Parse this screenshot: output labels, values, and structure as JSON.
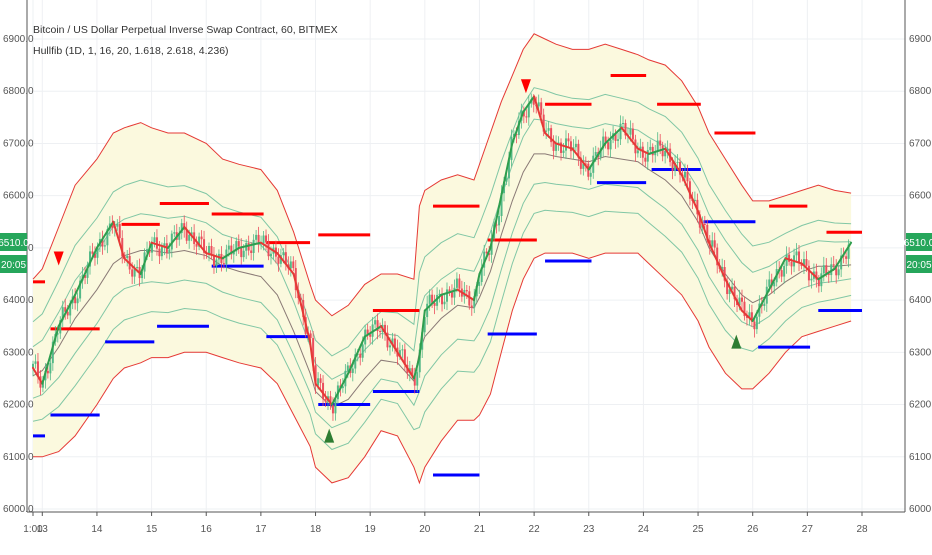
{
  "chart_data": {
    "type": "line",
    "title": "Bitcoin / US Dollar Perpetual Inverse Swap Contract, 60, BITMEX",
    "subtitle": "Hullfib (1D, 1, 16, 20, 1.618, 2.618, 4.236)",
    "ylim": [
      6000,
      6930
    ],
    "y_ticks": [
      "6000.0",
      "6100.0",
      "6200.0",
      "6300.0",
      "6400.0",
      "6500.0",
      "6600.0",
      "6700.0",
      "6800.0",
      "6900.0"
    ],
    "y_tick_values": [
      6000,
      6100,
      6200,
      6300,
      6400,
      6500,
      6600,
      6700,
      6800,
      6900
    ],
    "xlim": [
      12.8,
      28.1
    ],
    "x_ticks": [
      "1:00",
      "13",
      "14",
      "15",
      "16",
      "17",
      "18",
      "19",
      "20",
      "21",
      "22",
      "23",
      "24",
      "25",
      "26",
      "27",
      "28"
    ],
    "x_tick_values": [
      12.83,
      13,
      14,
      15,
      16,
      17,
      18,
      19,
      20,
      21,
      22,
      23,
      24,
      25,
      26,
      27,
      28
    ],
    "price_badge": "6510.0",
    "time_badge": "20:05",
    "x": [
      12.83,
      13.0,
      13.3,
      13.6,
      14.0,
      14.3,
      14.5,
      14.8,
      15.0,
      15.3,
      15.6,
      16.0,
      16.3,
      16.6,
      17.0,
      17.3,
      17.6,
      17.9,
      18.0,
      18.3,
      18.6,
      18.9,
      19.2,
      19.5,
      19.8,
      19.9,
      20.0,
      20.3,
      20.6,
      20.9,
      21.0,
      21.2,
      21.4,
      21.6,
      21.8,
      22.0,
      22.2,
      22.4,
      22.7,
      23.0,
      23.3,
      23.6,
      23.9,
      24.1,
      24.4,
      24.7,
      25.0,
      25.2,
      25.5,
      25.8,
      26.0,
      26.3,
      26.6,
      26.9,
      27.2,
      27.5,
      27.8
    ],
    "close": [
      6270,
      6240,
      6350,
      6410,
      6500,
      6550,
      6480,
      6450,
      6510,
      6500,
      6540,
      6490,
      6480,
      6500,
      6510,
      6490,
      6450,
      6320,
      6240,
      6200,
      6260,
      6330,
      6350,
      6300,
      6250,
      6290,
      6380,
      6410,
      6420,
      6400,
      6450,
      6500,
      6600,
      6700,
      6760,
      6790,
      6720,
      6700,
      6690,
      6650,
      6700,
      6730,
      6690,
      6680,
      6690,
      6640,
      6570,
      6510,
      6440,
      6380,
      6360,
      6420,
      6480,
      6470,
      6440,
      6460,
      6510
    ],
    "upper_band": [
      6440,
      6460,
      6540,
      6620,
      6670,
      6720,
      6730,
      6740,
      6730,
      6720,
      6720,
      6700,
      6670,
      6660,
      6650,
      6610,
      6530,
      6430,
      6400,
      6370,
      6390,
      6430,
      6450,
      6450,
      6440,
      6580,
      6610,
      6630,
      6640,
      6630,
      6660,
      6720,
      6780,
      6830,
      6880,
      6910,
      6900,
      6890,
      6880,
      6880,
      6890,
      6880,
      6870,
      6860,
      6850,
      6820,
      6770,
      6720,
      6670,
      6620,
      6590,
      6590,
      6600,
      6610,
      6620,
      6610,
      6605
    ],
    "lower_band": [
      6100,
      6100,
      6110,
      6140,
      6200,
      6250,
      6270,
      6280,
      6290,
      6290,
      6300,
      6300,
      6290,
      6280,
      6270,
      6240,
      6180,
      6120,
      6080,
      6050,
      6060,
      6100,
      6150,
      6140,
      6080,
      6050,
      6080,
      6130,
      6170,
      6170,
      6180,
      6220,
      6300,
      6380,
      6440,
      6480,
      6490,
      6490,
      6490,
      6480,
      6490,
      6490,
      6490,
      6470,
      6440,
      6410,
      6360,
      6310,
      6260,
      6230,
      6230,
      6260,
      6300,
      6330,
      6340,
      6350,
      6360
    ],
    "fib_levels": {
      "resistance": [
        {
          "x0": 12.83,
          "x1": 13.05,
          "y": 6435
        },
        {
          "x0": 13.15,
          "x1": 14.05,
          "y": 6345
        },
        {
          "x0": 14.45,
          "x1": 15.15,
          "y": 6545
        },
        {
          "x0": 15.15,
          "x1": 16.05,
          "y": 6585
        },
        {
          "x0": 16.1,
          "x1": 17.05,
          "y": 6565
        },
        {
          "x0": 17.1,
          "x1": 17.9,
          "y": 6510
        },
        {
          "x0": 18.05,
          "x1": 19.0,
          "y": 6525
        },
        {
          "x0": 19.05,
          "x1": 19.9,
          "y": 6380
        },
        {
          "x0": 20.15,
          "x1": 21.0,
          "y": 6580
        },
        {
          "x0": 21.15,
          "x1": 22.05,
          "y": 6515
        },
        {
          "x0": 22.2,
          "x1": 23.05,
          "y": 6775
        },
        {
          "x0": 23.4,
          "x1": 24.05,
          "y": 6830
        },
        {
          "x0": 24.25,
          "x1": 25.05,
          "y": 6775
        },
        {
          "x0": 25.3,
          "x1": 26.05,
          "y": 6720
        },
        {
          "x0": 26.3,
          "x1": 27.0,
          "y": 6580
        },
        {
          "x0": 27.35,
          "x1": 28.0,
          "y": 6530
        }
      ],
      "support": [
        {
          "x0": 12.83,
          "x1": 13.05,
          "y": 6140
        },
        {
          "x0": 13.15,
          "x1": 14.05,
          "y": 6180
        },
        {
          "x0": 14.15,
          "x1": 15.05,
          "y": 6320
        },
        {
          "x0": 15.1,
          "x1": 16.05,
          "y": 6350
        },
        {
          "x0": 16.1,
          "x1": 17.05,
          "y": 6465
        },
        {
          "x0": 17.1,
          "x1": 17.9,
          "y": 6330
        },
        {
          "x0": 18.05,
          "x1": 19.0,
          "y": 6200
        },
        {
          "x0": 19.05,
          "x1": 19.9,
          "y": 6225
        },
        {
          "x0": 20.15,
          "x1": 21.0,
          "y": 6065
        },
        {
          "x0": 21.15,
          "x1": 22.05,
          "y": 6335
        },
        {
          "x0": 22.2,
          "x1": 23.05,
          "y": 6475
        },
        {
          "x0": 23.15,
          "x1": 24.05,
          "y": 6625
        },
        {
          "x0": 24.15,
          "x1": 25.05,
          "y": 6650
        },
        {
          "x0": 25.1,
          "x1": 26.05,
          "y": 6550
        },
        {
          "x0": 26.1,
          "x1": 27.05,
          "y": 6310
        },
        {
          "x0": 27.2,
          "x1": 28.0,
          "y": 6380
        }
      ]
    },
    "signals": [
      {
        "x": 13.3,
        "y": 6470,
        "direction": "down"
      },
      {
        "x": 18.25,
        "y": 6150,
        "direction": "up"
      },
      {
        "x": 21.85,
        "y": 6800,
        "direction": "down"
      },
      {
        "x": 25.7,
        "y": 6330,
        "direction": "up"
      }
    ],
    "grid": true
  },
  "colors": {
    "band_edge": "#e53935",
    "band_fill": "#fbf9de",
    "hull_up": "#2e9e4e",
    "hull_down": "#e53935",
    "inner_band": "#81c7a5",
    "midline": "#8a7a76",
    "resistance": "#ff0000",
    "support": "#0000ff",
    "badge_green": "#26a65b",
    "signal_up": "#2e7d32",
    "signal_down": "#ff0000"
  }
}
